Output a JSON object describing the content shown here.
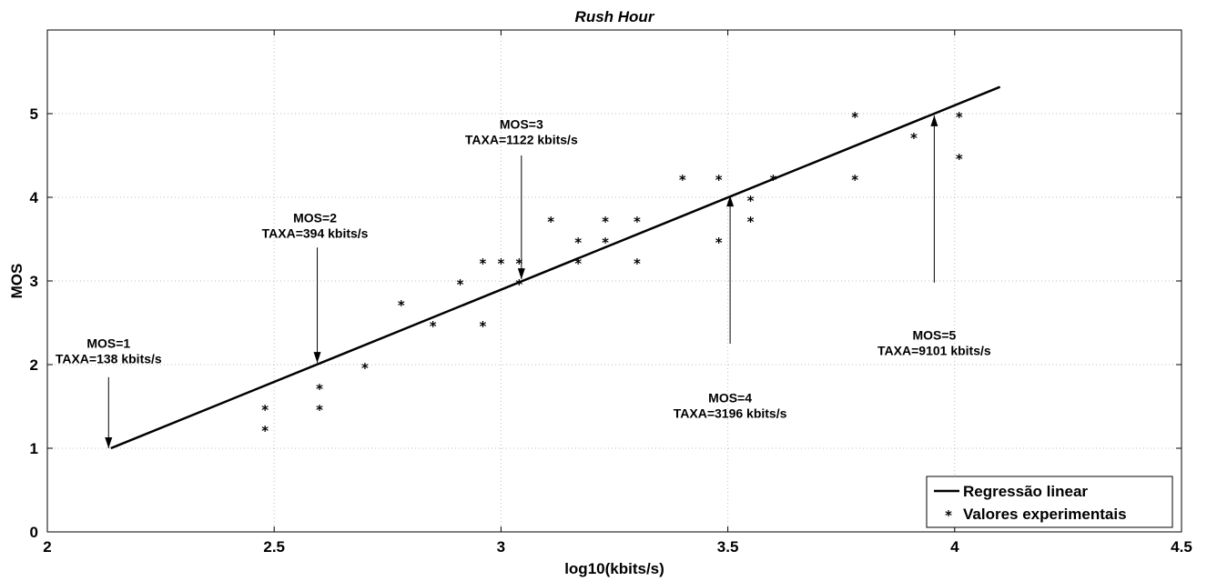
{
  "chart_data": {
    "type": "scatter",
    "title": "Rush Hour",
    "xlabel": "log10(kbits/s)",
    "ylabel": "MOS",
    "xlim": [
      2,
      4.5
    ],
    "ylim": [
      0,
      6
    ],
    "xticks": [
      "2",
      "2.5",
      "3",
      "3.5",
      "4",
      "4.5"
    ],
    "yticks": [
      "0",
      "1",
      "2",
      "3",
      "4",
      "5"
    ],
    "grid": true,
    "legend_position": "bottom-right",
    "series": [
      {
        "name": "Regressão linear",
        "kind": "line",
        "color": "#000000",
        "x": [
          2.14,
          4.1
        ],
        "y": [
          1.0,
          5.32
        ]
      },
      {
        "name": "Valores experimentais",
        "kind": "scatter",
        "color": "#000000",
        "x": [
          2.48,
          2.48,
          2.6,
          2.6,
          2.7,
          2.78,
          2.85,
          2.91,
          2.96,
          2.96,
          3.0,
          3.04,
          3.04,
          3.11,
          3.17,
          3.17,
          3.23,
          3.23,
          3.3,
          3.3,
          3.4,
          3.48,
          3.48,
          3.55,
          3.55,
          3.6,
          3.78,
          3.78,
          3.91,
          4.01,
          4.01
        ],
        "y": [
          1.5,
          1.25,
          1.75,
          1.5,
          2.0,
          2.75,
          2.5,
          3.0,
          3.25,
          2.5,
          3.25,
          3.25,
          3.0,
          3.75,
          3.5,
          3.25,
          3.75,
          3.5,
          3.75,
          3.25,
          4.25,
          4.25,
          3.5,
          4.0,
          3.75,
          4.25,
          5.0,
          4.25,
          4.75,
          5.0,
          4.5
        ]
      }
    ],
    "annotations": [
      {
        "line1": "MOS=1",
        "line2": "TAXA=138 kbits/s",
        "text_x": 2.135,
        "text_y": 2.2,
        "arrow_from": [
          2.135,
          1.85
        ],
        "arrow_to": [
          2.135,
          1.0
        ]
      },
      {
        "line1": "MOS=2",
        "line2": "TAXA=394 kbits/s",
        "text_x": 2.59,
        "text_y": 3.7,
        "arrow_from": [
          2.595,
          3.4
        ],
        "arrow_to": [
          2.595,
          2.02
        ]
      },
      {
        "line1": "MOS=3",
        "line2": "TAXA=1122 kbits/s",
        "text_x": 3.045,
        "text_y": 4.82,
        "arrow_from": [
          3.045,
          4.5
        ],
        "arrow_to": [
          3.045,
          3.02
        ]
      },
      {
        "line1": "MOS=4",
        "line2": "TAXA=3196 kbits/s",
        "text_x": 3.505,
        "text_y": 1.55,
        "arrow_from": [
          3.505,
          2.25
        ],
        "arrow_to": [
          3.505,
          4.02
        ]
      },
      {
        "line1": "MOS=5",
        "line2": "TAXA=9101 kbits/s",
        "text_x": 3.955,
        "text_y": 2.3,
        "arrow_from": [
          3.955,
          2.98
        ],
        "arrow_to": [
          3.955,
          4.98
        ]
      }
    ]
  }
}
